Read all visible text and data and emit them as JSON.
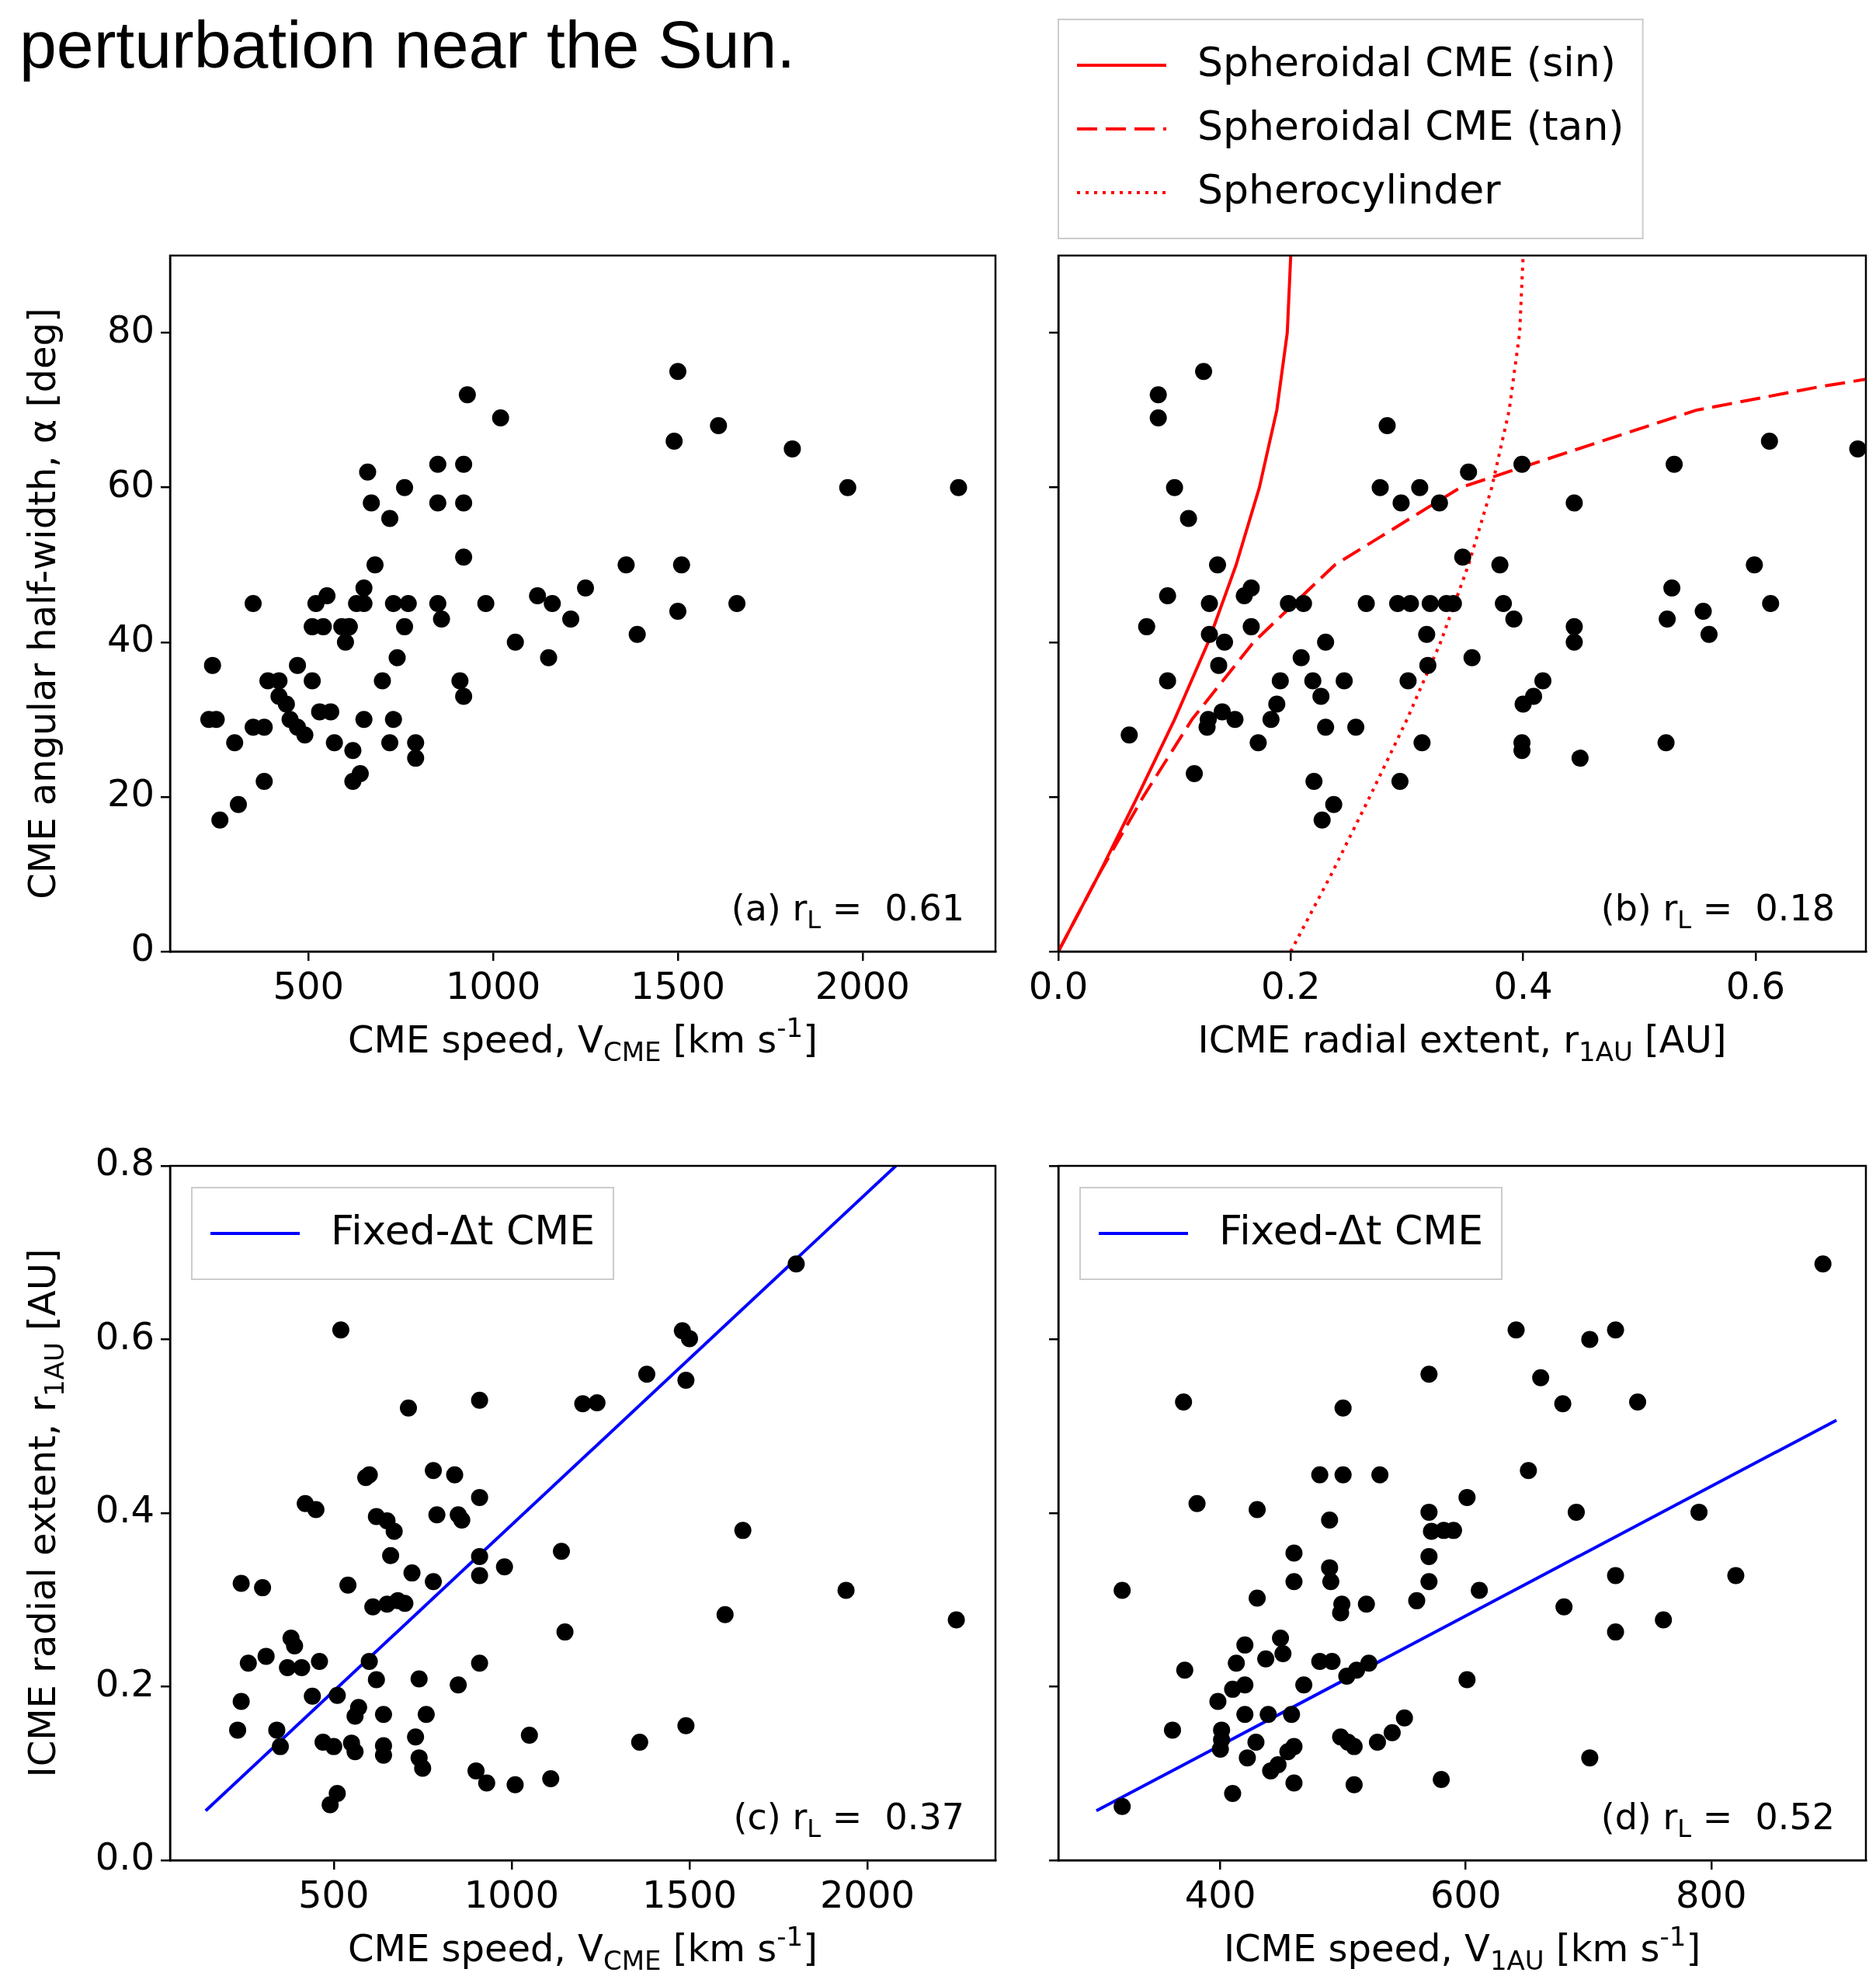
{
  "chart_data": [
    {
      "type": "scatter",
      "title": "perturbation near the Sun.",
      "xlabel": "CME speed, V$_{CME}$ [km s$^{-1}$]",
      "ylabel": "CME angular half-width, α [deg]",
      "annotations": [
        "(a) r$_{L}$ =  0.61"
      ],
      "xlim": [
        125,
        2360
      ],
      "ylim": [
        0,
        90
      ],
      "xticks": [
        500,
        1000,
        1500,
        2000
      ],
      "yticks": [
        0,
        20,
        40,
        60,
        80
      ],
      "grid": false,
      "marker": "circle",
      "series": [
        {
          "color": "#000000",
          "x": [
            240,
            230,
            250,
            260,
            300,
            310,
            350,
            350,
            380,
            380,
            390,
            420,
            420,
            440,
            450,
            470,
            470,
            490,
            510,
            510,
            520,
            530,
            540,
            550,
            560,
            570,
            590,
            600,
            610,
            610,
            620,
            620,
            630,
            640,
            650,
            650,
            650,
            660,
            670,
            680,
            700,
            720,
            720,
            730,
            730,
            740,
            760,
            760,
            770,
            790,
            790,
            850,
            850,
            850,
            860,
            920,
            920,
            920,
            910,
            920,
            930,
            980,
            1020,
            1060,
            1120,
            1150,
            1160,
            1210,
            1250,
            1360,
            1390,
            1490,
            1500,
            1510,
            1500,
            1610,
            1660,
            1810,
            1960,
            2260
          ],
          "values": [
            37,
            30,
            30,
            17,
            27,
            19,
            29,
            45,
            22,
            29,
            35,
            35,
            33,
            32,
            30,
            37,
            29,
            28,
            35,
            42,
            45,
            31,
            42,
            46,
            31,
            27,
            42,
            40,
            42,
            42,
            26,
            22,
            45,
            23,
            45,
            47,
            30,
            62,
            58,
            50,
            35,
            56,
            27,
            30,
            45,
            38,
            42,
            60,
            45,
            27,
            25,
            45,
            63,
            58,
            43,
            63,
            58,
            51,
            35,
            33,
            72,
            45,
            69,
            40,
            46,
            38,
            45,
            43,
            47,
            50,
            41,
            66,
            75,
            50,
            44,
            68,
            45,
            65,
            60,
            60
          ]
        }
      ]
    },
    {
      "type": "scatter",
      "xlabel": "ICME radial extent, r$_{1AU}$ [AU]",
      "annotations": [
        "(b) r$_{L}$ =  0.18"
      ],
      "xlim": [
        0,
        0.695
      ],
      "ylim": [
        0,
        90
      ],
      "xticks": [
        {
          "value": 0,
          "label": "0.0"
        },
        {
          "value": 0.2,
          "label": "0.2"
        },
        {
          "value": 0.4,
          "label": "0.4"
        },
        {
          "value": 0.6,
          "label": "0.6"
        }
      ],
      "yticks": [
        0,
        20,
        40,
        60,
        80
      ],
      "tick_labels": "x",
      "grid": false,
      "marker": "circle",
      "legend": "top",
      "series": [
        {
          "color": "#000000",
          "x": [
            0.086,
            0.086,
            0.061,
            0.076,
            0.094,
            0.094,
            0.1,
            0.112,
            0.125,
            0.117,
            0.128,
            0.129,
            0.13,
            0.13,
            0.137,
            0.138,
            0.141,
            0.143,
            0.152,
            0.16,
            0.166,
            0.166,
            0.172,
            0.183,
            0.188,
            0.191,
            0.198,
            0.211,
            0.209,
            0.219,
            0.22,
            0.226,
            0.23,
            0.23,
            0.227,
            0.237,
            0.246,
            0.256,
            0.265,
            0.277,
            0.283,
            0.295,
            0.292,
            0.294,
            0.301,
            0.303,
            0.311,
            0.313,
            0.317,
            0.318,
            0.32,
            0.328,
            0.334,
            0.34,
            0.348,
            0.353,
            0.356,
            0.38,
            0.383,
            0.392,
            0.399,
            0.4,
            0.399,
            0.399,
            0.409,
            0.417,
            0.444,
            0.444,
            0.444,
            0.449,
            0.523,
            0.524,
            0.528,
            0.53,
            0.555,
            0.56,
            0.599,
            0.612,
            0.613,
            0.688
          ],
          "values": [
            72,
            69,
            28,
            42,
            46,
            35,
            60,
            56,
            75,
            23,
            29,
            30,
            45,
            41,
            50,
            37,
            31,
            40,
            30,
            46,
            47,
            42,
            27,
            30,
            32,
            35,
            45,
            45,
            38,
            35,
            22,
            33,
            40,
            29,
            17,
            19,
            35,
            29,
            45,
            60,
            68,
            58,
            45,
            22,
            35,
            45,
            60,
            27,
            41,
            37,
            45,
            58,
            45,
            45,
            51,
            62,
            38,
            50,
            45,
            43,
            63,
            32,
            27,
            26,
            33,
            35,
            58,
            42,
            40,
            25,
            27,
            43,
            47,
            63,
            44,
            41,
            50,
            66,
            45,
            65
          ]
        },
        {
          "type": "line",
          "name": "Spheroidal CME (sin)",
          "color": "#ff0000",
          "line_style": "solid",
          "marker": "none",
          "x": [
            0,
            0.035,
            0.068,
            0.1,
            0.129,
            0.153,
            0.173,
            0.188,
            0.197,
            0.2
          ],
          "values": [
            0,
            10,
            20,
            30,
            40,
            50,
            60,
            70,
            80,
            90
          ]
        },
        {
          "type": "line",
          "name": "Spheroidal CME (tan)",
          "color": "#ff0000",
          "line_style": "dashed",
          "marker": "none",
          "x": [
            0,
            0.035,
            0.073,
            0.115,
            0.168,
            0.238,
            0.346,
            0.549,
            0.654,
            0.695
          ],
          "values": [
            0,
            10,
            20,
            30,
            40,
            50,
            60,
            70,
            73,
            74
          ]
        },
        {
          "type": "line",
          "name": "Spherocylinder",
          "color": "#ff0000",
          "line_style": "dotted",
          "marker": "none",
          "x": [
            0.2,
            0.235,
            0.268,
            0.3,
            0.329,
            0.353,
            0.373,
            0.388,
            0.397,
            0.4
          ],
          "values": [
            0,
            10,
            20,
            30,
            40,
            50,
            60,
            70,
            80,
            90
          ]
        }
      ]
    },
    {
      "type": "scatter",
      "xlabel": "CME speed, V$_{CME}$ [km s$^{-1}$]",
      "ylabel": "ICME radial extent, r$_{1AU}$ [AU]",
      "annotations": [
        "(c) r$_{L}$ =  0.37"
      ],
      "xlim": [
        40,
        2360
      ],
      "ylim": [
        0,
        0.8
      ],
      "xticks": [
        500,
        1000,
        1500,
        2000
      ],
      "yticks": [
        {
          "value": 0,
          "label": "0.0"
        },
        {
          "value": 0.2,
          "label": "0.2"
        },
        {
          "value": 0.4,
          "label": "0.4"
        },
        {
          "value": 0.6,
          "label": "0.6"
        },
        {
          "value": 0.8,
          "label": "0.8"
        }
      ],
      "grid": false,
      "marker": "circle",
      "legend": "top left",
      "series": [
        {
          "color": "#000000",
          "x": [
            240,
            240,
            230,
            300,
            260,
            310,
            340,
            350,
            380,
            390,
            370,
            410,
            420,
            450,
            460,
            440,
            470,
            490,
            510,
            520,
            500,
            510,
            540,
            550,
            560,
            570,
            560,
            600,
            590,
            600,
            610,
            620,
            620,
            640,
            640,
            640,
            650,
            650,
            660,
            670,
            680,
            700,
            710,
            720,
            730,
            740,
            740,
            750,
            760,
            780,
            780,
            790,
            850,
            840,
            850,
            860,
            900,
            910,
            910,
            910,
            910,
            910,
            930,
            980,
            1010,
            1050,
            1110,
            1140,
            1150,
            1200,
            1240,
            1360,
            1380,
            1480,
            1500,
            1490,
            1490,
            1650,
            1600,
            1800,
            1940,
            2250
          ],
          "values": [
            0.319,
            0.183,
            0.15,
            0.314,
            0.227,
            0.235,
            0.15,
            0.131,
            0.256,
            0.247,
            0.222,
            0.222,
            0.411,
            0.404,
            0.229,
            0.189,
            0.136,
            0.064,
            0.077,
            0.611,
            0.131,
            0.19,
            0.317,
            0.135,
            0.166,
            0.176,
            0.125,
            0.444,
            0.441,
            0.229,
            0.292,
            0.208,
            0.396,
            0.121,
            0.168,
            0.132,
            0.295,
            0.391,
            0.351,
            0.379,
            0.299,
            0.296,
            0.521,
            0.331,
            0.142,
            0.118,
            0.209,
            0.106,
            0.168,
            0.321,
            0.449,
            0.398,
            0.202,
            0.444,
            0.398,
            0.392,
            0.103,
            0.53,
            0.418,
            0.227,
            0.35,
            0.328,
            0.089,
            0.338,
            0.087,
            0.144,
            0.094,
            0.356,
            0.263,
            0.526,
            0.527,
            0.136,
            0.56,
            0.61,
            0.601,
            0.553,
            0.155,
            0.38,
            0.283,
            0.687,
            0.311,
            0.277
          ]
        },
        {
          "type": "line",
          "name": "Fixed-Δt CME",
          "color": "#0000ff",
          "line_style": "solid",
          "marker": "none",
          "x": [
            140,
            2080
          ],
          "values": [
            0.057,
            0.8
          ]
        }
      ]
    },
    {
      "type": "scatter",
      "xlabel": "ICME speed, V$_{1AU}$ [km s$^{-1}$]",
      "annotations": [
        "(d) r$_{L}$ =  0.52"
      ],
      "xlim": [
        268,
        926
      ],
      "ylim": [
        0,
        0.8
      ],
      "xticks": [
        400,
        600,
        800
      ],
      "yticks": [
        0,
        0.2,
        0.4,
        0.6,
        0.8
      ],
      "tick_labels": "x",
      "grid": false,
      "marker": "circle",
      "legend": "top left",
      "series": [
        {
          "color": "#000000",
          "x": [
            320,
            320,
            370,
            381,
            371,
            361,
            398,
            401,
            400,
            401,
            410,
            410,
            413,
            420,
            420,
            420,
            422,
            429,
            430,
            430,
            437,
            439,
            441,
            447,
            449,
            451,
            455,
            458,
            460,
            460,
            460,
            460,
            468,
            481,
            481,
            489,
            489,
            490,
            491,
            498,
            500,
            500,
            499,
            498,
            503,
            504,
            509,
            509,
            511,
            519,
            521,
            528,
            530,
            540,
            550,
            560,
            570,
            570,
            572,
            570,
            570,
            580,
            582,
            590,
            601,
            601,
            611,
            641,
            651,
            661,
            679,
            680,
            690,
            701,
            701,
            722,
            722,
            722,
            740,
            761,
            790,
            820,
            891
          ],
          "values": [
            0.311,
            0.062,
            0.528,
            0.411,
            0.219,
            0.15,
            0.183,
            0.15,
            0.128,
            0.139,
            0.077,
            0.197,
            0.227,
            0.202,
            0.248,
            0.168,
            0.118,
            0.136,
            0.302,
            0.404,
            0.232,
            0.168,
            0.103,
            0.11,
            0.256,
            0.238,
            0.125,
            0.168,
            0.089,
            0.321,
            0.354,
            0.131,
            0.202,
            0.444,
            0.229,
            0.392,
            0.337,
            0.321,
            0.229,
            0.285,
            0.444,
            0.521,
            0.295,
            0.142,
            0.212,
            0.136,
            0.087,
            0.131,
            0.219,
            0.295,
            0.227,
            0.136,
            0.444,
            0.147,
            0.164,
            0.299,
            0.56,
            0.401,
            0.379,
            0.35,
            0.321,
            0.093,
            0.38,
            0.38,
            0.418,
            0.208,
            0.311,
            0.611,
            0.449,
            0.556,
            0.526,
            0.292,
            0.401,
            0.6,
            0.118,
            0.611,
            0.328,
            0.263,
            0.528,
            0.277,
            0.401,
            0.328,
            0.687
          ]
        },
        {
          "type": "line",
          "name": "Fixed-Δt CME",
          "color": "#0000ff",
          "line_style": "solid",
          "marker": "none",
          "x": [
            299,
            902
          ],
          "values": [
            0.057,
            0.507
          ]
        }
      ]
    }
  ]
}
